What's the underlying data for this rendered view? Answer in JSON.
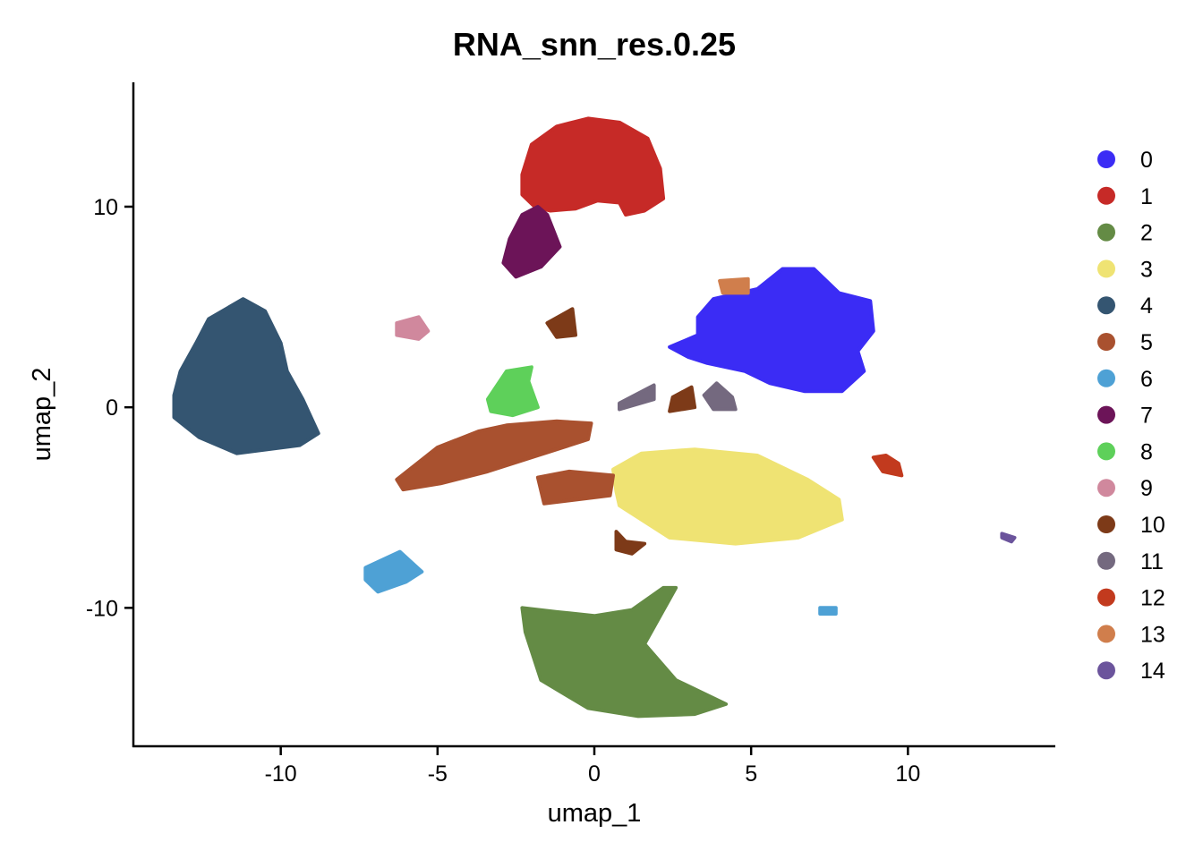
{
  "chart_data": {
    "type": "scatter",
    "title": "RNA_snn_res.0.25",
    "xlabel": "umap_1",
    "ylabel": "umap_2",
    "xlim": [
      -14.7,
      14.7
    ],
    "ylim": [
      -16.9,
      16.2
    ],
    "x_ticks": [
      -10,
      -5,
      0,
      5,
      10
    ],
    "y_ticks": [
      -10,
      0,
      10
    ],
    "grid": false,
    "legend_position": "right",
    "series": [
      {
        "name": "0",
        "color": "#3B2CF5",
        "regions": [
          {
            "shape": "polygon",
            "pts": [
              [
                3.3,
                3.6
              ],
              [
                2.4,
                3.0
              ],
              [
                3.0,
                2.5
              ],
              [
                3.6,
                2.2
              ],
              [
                4.8,
                1.8
              ],
              [
                5.6,
                1.2
              ],
              [
                6.7,
                0.8
              ],
              [
                7.9,
                0.8
              ],
              [
                8.6,
                1.8
              ],
              [
                8.4,
                2.8
              ],
              [
                8.9,
                3.8
              ],
              [
                8.8,
                5.3
              ],
              [
                7.8,
                5.7
              ],
              [
                7.0,
                6.9
              ],
              [
                6.0,
                6.9
              ],
              [
                5.2,
                5.9
              ],
              [
                3.8,
                5.4
              ],
              [
                3.3,
                4.5
              ]
            ]
          }
        ]
      },
      {
        "name": "1",
        "color": "#C62A27",
        "regions": [
          {
            "shape": "polygon",
            "pts": [
              [
                -2.3,
                10.6
              ],
              [
                -2.3,
                11.6
              ],
              [
                -2.0,
                13.1
              ],
              [
                -1.2,
                14.0
              ],
              [
                -0.2,
                14.4
              ],
              [
                0.8,
                14.2
              ],
              [
                1.7,
                13.4
              ],
              [
                2.1,
                11.9
              ],
              [
                2.2,
                10.4
              ],
              [
                1.6,
                9.8
              ],
              [
                1.0,
                9.6
              ],
              [
                0.8,
                10.2
              ],
              [
                0.1,
                10.3
              ],
              [
                -0.6,
                9.9
              ],
              [
                -1.4,
                9.8
              ],
              [
                -1.9,
                10.0
              ]
            ]
          }
        ]
      },
      {
        "name": "2",
        "color": "#648B45",
        "regions": [
          {
            "shape": "polygon",
            "pts": [
              [
                -2.3,
                -10.0
              ],
              [
                -1.2,
                -10.2
              ],
              [
                0.0,
                -10.4
              ],
              [
                1.2,
                -10.1
              ],
              [
                2.2,
                -9.0
              ],
              [
                2.6,
                -9.0
              ],
              [
                1.6,
                -11.8
              ],
              [
                2.6,
                -13.6
              ],
              [
                4.2,
                -14.8
              ],
              [
                3.2,
                -15.3
              ],
              [
                1.4,
                -15.4
              ],
              [
                -0.2,
                -15.0
              ],
              [
                -1.7,
                -13.6
              ],
              [
                -2.2,
                -11.2
              ]
            ]
          }
        ]
      },
      {
        "name": "3",
        "color": "#EFE373",
        "regions": [
          {
            "shape": "polygon",
            "pts": [
              [
                0.6,
                -3.1
              ],
              [
                1.5,
                -2.3
              ],
              [
                3.2,
                -2.1
              ],
              [
                5.2,
                -2.4
              ],
              [
                6.8,
                -3.6
              ],
              [
                7.8,
                -4.6
              ],
              [
                7.9,
                -5.6
              ],
              [
                6.5,
                -6.5
              ],
              [
                4.5,
                -6.8
              ],
              [
                2.4,
                -6.5
              ],
              [
                0.8,
                -4.9
              ],
              [
                0.7,
                -4.2
              ]
            ]
          }
        ]
      },
      {
        "name": "4",
        "color": "#345571",
        "regions": [
          {
            "shape": "polygon",
            "pts": [
              [
                -12.3,
                4.4
              ],
              [
                -11.2,
                5.4
              ],
              [
                -10.5,
                4.8
              ],
              [
                -10.0,
                3.2
              ],
              [
                -9.8,
                1.8
              ],
              [
                -9.3,
                0.4
              ],
              [
                -8.8,
                -1.3
              ],
              [
                -9.4,
                -1.9
              ],
              [
                -11.4,
                -2.3
              ],
              [
                -12.6,
                -1.5
              ],
              [
                -13.4,
                -0.5
              ],
              [
                -13.4,
                0.6
              ],
              [
                -13.2,
                1.8
              ],
              [
                -12.7,
                3.2
              ]
            ]
          }
        ]
      },
      {
        "name": "5",
        "color": "#A9512F",
        "regions": [
          {
            "shape": "polygon",
            "pts": [
              [
                -6.3,
                -3.6
              ],
              [
                -5.0,
                -2.0
              ],
              [
                -3.7,
                -1.2
              ],
              [
                -2.8,
                -0.9
              ],
              [
                -1.2,
                -0.7
              ],
              [
                -0.1,
                -0.8
              ],
              [
                -0.2,
                -1.6
              ],
              [
                -1.8,
                -2.4
              ],
              [
                -3.4,
                -3.2
              ],
              [
                -4.9,
                -3.8
              ],
              [
                -6.1,
                -4.1
              ]
            ]
          },
          {
            "shape": "polygon",
            "pts": [
              [
                -1.8,
                -3.5
              ],
              [
                -0.8,
                -3.2
              ],
              [
                0.6,
                -3.4
              ],
              [
                0.5,
                -4.4
              ],
              [
                -1.6,
                -4.8
              ]
            ]
          }
        ]
      },
      {
        "name": "6",
        "color": "#4EA1D5",
        "regions": [
          {
            "shape": "polygon",
            "pts": [
              [
                -7.3,
                -8.0
              ],
              [
                -6.2,
                -7.2
              ],
              [
                -5.5,
                -8.2
              ],
              [
                -6.0,
                -8.7
              ],
              [
                -6.9,
                -9.2
              ],
              [
                -7.3,
                -8.6
              ]
            ]
          },
          {
            "shape": "polygon",
            "pts": [
              [
                7.2,
                -10.0
              ],
              [
                7.7,
                -10.0
              ],
              [
                7.7,
                -10.3
              ],
              [
                7.2,
                -10.3
              ]
            ]
          }
        ]
      },
      {
        "name": "7",
        "color": "#6C1458",
        "regions": [
          {
            "shape": "polygon",
            "pts": [
              [
                -2.9,
                7.2
              ],
              [
                -2.7,
                8.4
              ],
              [
                -2.3,
                9.6
              ],
              [
                -1.8,
                10.0
              ],
              [
                -1.5,
                9.6
              ],
              [
                -1.1,
                8.0
              ],
              [
                -1.7,
                7.0
              ],
              [
                -2.5,
                6.5
              ]
            ]
          }
        ]
      },
      {
        "name": "8",
        "color": "#5ED05A",
        "regions": [
          {
            "shape": "polygon",
            "pts": [
              [
                -3.4,
                0.4
              ],
              [
                -2.8,
                1.8
              ],
              [
                -2.0,
                2.0
              ],
              [
                -2.1,
                1.3
              ],
              [
                -1.8,
                0.0
              ],
              [
                -2.6,
                -0.4
              ],
              [
                -3.3,
                -0.2
              ]
            ]
          }
        ]
      },
      {
        "name": "9",
        "color": "#D0889D",
        "regions": [
          {
            "shape": "polygon",
            "pts": [
              [
                -6.3,
                4.2
              ],
              [
                -5.6,
                4.5
              ],
              [
                -5.3,
                3.8
              ],
              [
                -5.6,
                3.4
              ],
              [
                -6.3,
                3.6
              ]
            ]
          }
        ]
      },
      {
        "name": "10",
        "color": "#7D3A18",
        "regions": [
          {
            "shape": "polygon",
            "pts": [
              [
                -1.5,
                4.2
              ],
              [
                -0.7,
                4.9
              ],
              [
                -0.6,
                3.6
              ],
              [
                -1.2,
                3.5
              ]
            ]
          },
          {
            "shape": "polygon",
            "pts": [
              [
                2.5,
                0.5
              ],
              [
                3.1,
                1.0
              ],
              [
                3.2,
                0.0
              ],
              [
                2.4,
                -0.2
              ]
            ]
          },
          {
            "shape": "polygon",
            "pts": [
              [
                0.7,
                -6.2
              ],
              [
                1.0,
                -6.7
              ],
              [
                1.6,
                -6.8
              ],
              [
                1.2,
                -7.3
              ],
              [
                0.7,
                -7.1
              ]
            ]
          }
        ]
      },
      {
        "name": "11",
        "color": "#74697F",
        "regions": [
          {
            "shape": "polygon",
            "pts": [
              [
                0.8,
                0.2
              ],
              [
                1.9,
                1.1
              ],
              [
                1.9,
                0.4
              ],
              [
                0.8,
                -0.1
              ]
            ]
          },
          {
            "shape": "polygon",
            "pts": [
              [
                3.5,
                0.6
              ],
              [
                3.9,
                1.2
              ],
              [
                4.4,
                0.5
              ],
              [
                4.5,
                -0.1
              ],
              [
                3.8,
                -0.1
              ]
            ]
          }
        ]
      },
      {
        "name": "12",
        "color": "#C23A1E",
        "regions": [
          {
            "shape": "polygon",
            "pts": [
              [
                8.9,
                -2.5
              ],
              [
                9.3,
                -2.4
              ],
              [
                9.7,
                -2.8
              ],
              [
                9.8,
                -3.4
              ],
              [
                9.2,
                -3.2
              ]
            ]
          }
        ]
      },
      {
        "name": "13",
        "color": "#D07E4C",
        "regions": [
          {
            "shape": "polygon",
            "pts": [
              [
                4.0,
                6.3
              ],
              [
                4.9,
                6.4
              ],
              [
                4.9,
                5.7
              ],
              [
                4.1,
                5.7
              ]
            ]
          }
        ]
      },
      {
        "name": "14",
        "color": "#6B549C",
        "regions": [
          {
            "shape": "polygon",
            "pts": [
              [
                13.0,
                -6.3
              ],
              [
                13.4,
                -6.5
              ],
              [
                13.3,
                -6.7
              ],
              [
                13.0,
                -6.5
              ]
            ]
          }
        ]
      }
    ]
  }
}
